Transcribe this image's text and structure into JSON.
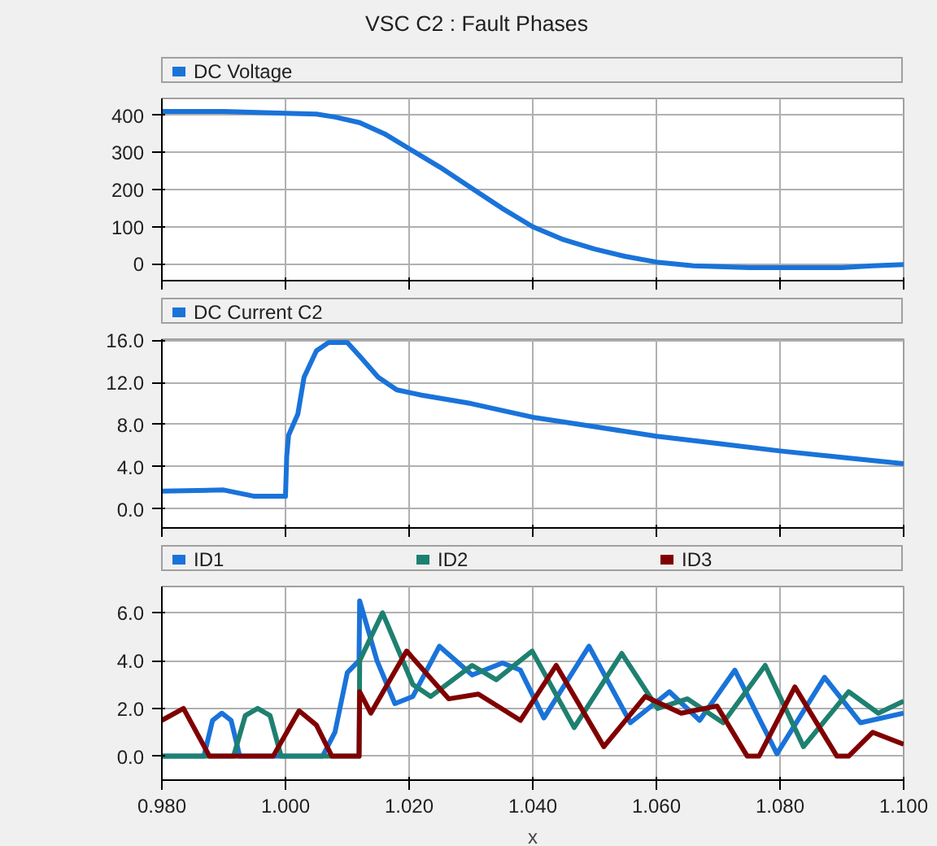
{
  "chart_data": [
    {
      "type": "line",
      "title": "VSC C2 : Fault Phases",
      "xlim": [
        0.98,
        1.1
      ],
      "xticks": [
        {
          "value": 0.98,
          "label": null
        },
        {
          "value": 1.0,
          "label": null
        },
        {
          "value": 1.02,
          "label": null
        },
        {
          "value": 1.04,
          "label": null
        },
        {
          "value": 1.06,
          "label": null
        },
        {
          "value": 1.08,
          "label": null
        },
        {
          "value": 1.1,
          "label": null
        }
      ],
      "ylim": [
        -45,
        445
      ],
      "yticks": [
        0,
        100,
        200,
        300,
        400
      ],
      "grid": true,
      "legend": "top",
      "tick_labels": "y",
      "series": [
        {
          "name": "DC Voltage",
          "color": "#1a73d9",
          "x": [
            0.98,
            0.99,
            1.0,
            1.005,
            1.008,
            1.012,
            1.016,
            1.02,
            1.025,
            1.03,
            1.035,
            1.04,
            1.045,
            1.05,
            1.055,
            1.06,
            1.066,
            1.075,
            1.09,
            1.095,
            1.1
          ],
          "values": [
            410,
            410,
            405,
            403,
            395,
            380,
            350,
            310,
            260,
            205,
            150,
            100,
            65,
            40,
            20,
            5,
            -5,
            -10,
            -10,
            -5,
            -2
          ]
        }
      ]
    },
    {
      "type": "line",
      "xlim": [
        0.98,
        1.1
      ],
      "xticks": [
        {
          "value": 0.98,
          "label": null
        },
        {
          "value": 1.0,
          "label": null
        },
        {
          "value": 1.02,
          "label": null
        },
        {
          "value": 1.04,
          "label": null
        },
        {
          "value": 1.06,
          "label": null
        },
        {
          "value": 1.08,
          "label": null
        },
        {
          "value": 1.1,
          "label": null
        }
      ],
      "ylim": [
        -1.8,
        16.1
      ],
      "yticks": [
        {
          "value": 0,
          "label": "0.0"
        },
        {
          "value": 4,
          "label": "4.0"
        },
        {
          "value": 8,
          "label": "8.0"
        },
        {
          "value": 12,
          "label": "12.0"
        },
        {
          "value": 16,
          "label": "16.0"
        }
      ],
      "grid": true,
      "legend": "top",
      "tick_labels": "y",
      "series": [
        {
          "name": "DC Current C2",
          "color": "#1a73d9",
          "x": [
            0.98,
            0.99,
            0.995,
            1.0,
            1.0002,
            1.0005,
            1.002,
            1.003,
            1.005,
            1.007,
            1.01,
            1.012,
            1.015,
            1.018,
            1.022,
            1.03,
            1.04,
            1.05,
            1.06,
            1.07,
            1.08,
            1.09,
            1.1
          ],
          "values": [
            1.7,
            1.8,
            1.2,
            1.2,
            5.0,
            7.0,
            9.0,
            12.5,
            15.0,
            15.8,
            15.8,
            14.5,
            12.5,
            11.3,
            10.8,
            10.0,
            8.7,
            7.8,
            6.9,
            6.2,
            5.5,
            4.9,
            4.3
          ]
        }
      ]
    },
    {
      "type": "line",
      "xlabel": "x",
      "xlim": [
        0.98,
        1.1
      ],
      "xticks": [
        {
          "value": 0.98,
          "label": "0.980"
        },
        {
          "value": 1.0,
          "label": "1.000"
        },
        {
          "value": 1.02,
          "label": "1.020"
        },
        {
          "value": 1.04,
          "label": "1.040"
        },
        {
          "value": 1.06,
          "label": "1.060"
        },
        {
          "value": 1.08,
          "label": "1.080"
        },
        {
          "value": 1.1,
          "label": "1.100"
        }
      ],
      "ylim": [
        -1.0,
        7.1
      ],
      "yticks": [
        {
          "value": 0,
          "label": "0.0"
        },
        {
          "value": 2,
          "label": "2.0"
        },
        {
          "value": 4,
          "label": "4.0"
        },
        {
          "value": 6,
          "label": "6.0"
        }
      ],
      "grid": true,
      "legend": "top",
      "series": [
        {
          "name": "ID1",
          "color": "#1a73d9",
          "x": [
            0.98,
            0.9868,
            0.9882,
            0.9897,
            0.9912,
            0.9926,
            1.006,
            1.008,
            1.01,
            1.0119,
            1.012,
            1.0148,
            1.0177,
            1.0206,
            1.0249,
            1.0302,
            1.0351,
            1.038,
            1.0418,
            1.0491,
            1.0558,
            1.0621,
            1.067,
            1.0727,
            1.0795,
            1.0872,
            1.093,
            1.1
          ],
          "values": [
            0,
            0,
            1.5,
            1.8,
            1.5,
            0,
            0,
            1.0,
            3.5,
            4.0,
            6.5,
            4.0,
            2.2,
            2.5,
            4.6,
            3.4,
            3.9,
            3.6,
            1.6,
            4.6,
            1.4,
            2.7,
            1.5,
            3.6,
            0.1,
            3.3,
            1.4,
            1.8
          ]
        },
        {
          "name": "ID2",
          "color": "#1e8070",
          "x": [
            0.98,
            0.9916,
            0.9935,
            0.9955,
            0.9975,
            0.9993,
            1.0119,
            1.012,
            1.0157,
            1.0206,
            1.0235,
            1.0302,
            1.0341,
            1.0399,
            1.0467,
            1.0544,
            1.0602,
            1.065,
            1.0708,
            1.0776,
            1.0838,
            1.0911,
            1.0959,
            1.1
          ],
          "values": [
            0,
            0,
            1.7,
            2.0,
            1.7,
            0,
            0,
            4.0,
            6.0,
            3.0,
            2.5,
            3.8,
            3.2,
            4.4,
            1.2,
            4.3,
            2.0,
            2.4,
            1.4,
            3.8,
            0.4,
            2.7,
            1.8,
            2.3
          ]
        },
        {
          "name": "ID3",
          "color": "#800000",
          "x": [
            0.98,
            0.9835,
            0.9877,
            0.998,
            1.0022,
            1.005,
            1.0075,
            1.0119,
            1.012,
            1.0138,
            1.0196,
            1.0264,
            1.0312,
            1.038,
            1.0438,
            1.0515,
            1.0582,
            1.064,
            1.0698,
            1.0747,
            1.0766,
            1.0824,
            1.0892,
            1.0911,
            1.095,
            1.1
          ],
          "values": [
            1.5,
            2.0,
            0,
            0,
            1.9,
            1.3,
            0,
            0,
            2.7,
            1.8,
            4.4,
            2.4,
            2.6,
            1.5,
            3.8,
            0.4,
            2.5,
            1.8,
            2.1,
            0,
            0,
            2.9,
            0,
            0,
            1.0,
            0.5
          ]
        }
      ]
    }
  ]
}
